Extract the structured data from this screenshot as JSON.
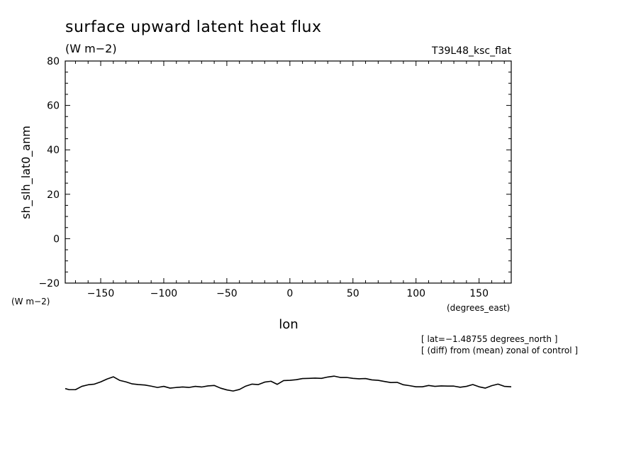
{
  "chart_data": {
    "type": "line",
    "title": "surface upward latent heat flux",
    "units": "(W m−2)",
    "run_label": "T39L48_ksc_flat",
    "ylabel": "sh_slh_lat0_anm",
    "y_unit_label": "(W m−2)",
    "xlabel": "lon",
    "x_unit_label": "(degrees_east)",
    "xlim": [
      -178.125,
      175.5
    ],
    "ylim": [
      -20,
      80
    ],
    "x_ticks": [
      -150,
      -100,
      -50,
      0,
      50,
      100,
      150
    ],
    "x_tick_labels": [
      "−150",
      "−100",
      "−50",
      "0",
      "50",
      "100",
      "150"
    ],
    "y_ticks": [
      -20,
      0,
      20,
      40,
      60,
      80
    ],
    "y_tick_labels": [
      "−20",
      "0",
      "20",
      "40",
      "60",
      "80"
    ],
    "grid": false,
    "notes": [
      "[ lat=−1.48755 degrees_north ]",
      "[ (diff) from (mean) zonal of control ]"
    ],
    "series": [
      {
        "x": [
          -178.125,
          -175,
          -170,
          -165,
          -160,
          -155,
          -150,
          -145,
          -140,
          -135,
          -130,
          -125,
          -120,
          -115,
          -110,
          -105,
          -100,
          -95,
          -90,
          -85,
          -80,
          -75,
          -70,
          -65,
          -60,
          -55,
          -50,
          -45,
          -40,
          -35,
          -30,
          -25,
          -20,
          -15,
          -10,
          -5,
          0,
          5,
          10,
          15,
          20,
          25,
          30,
          35,
          40,
          45,
          50,
          55,
          60,
          65,
          70,
          75,
          80,
          85,
          90,
          95,
          100,
          105,
          110,
          115,
          120,
          125,
          130,
          135,
          140,
          145,
          150,
          155,
          160,
          165,
          170,
          175.5
        ],
        "y": [
          -67.5,
          -68.0,
          -68.0,
          -66.5,
          -65.8,
          -65.5,
          -64.5,
          -63.2,
          -62.2,
          -63.8,
          -64.5,
          -65.4,
          -65.7,
          -65.9,
          -66.4,
          -67.0,
          -66.5,
          -67.3,
          -67.0,
          -66.8,
          -67.0,
          -66.5,
          -66.8,
          -66.3,
          -66.1,
          -67.3,
          -68.1,
          -68.6,
          -67.9,
          -66.4,
          -65.5,
          -65.7,
          -64.6,
          -64.2,
          -65.6,
          -63.9,
          -63.8,
          -63.5,
          -63.0,
          -62.9,
          -62.8,
          -62.9,
          -62.3,
          -61.9,
          -62.5,
          -62.5,
          -62.9,
          -63.1,
          -63.0,
          -63.6,
          -63.8,
          -64.3,
          -64.8,
          -64.7,
          -65.8,
          -66.2,
          -66.7,
          -66.7,
          -66.1,
          -66.5,
          -66.3,
          -66.4,
          -66.4,
          -66.9,
          -66.5,
          -65.7,
          -66.7,
          -67.3,
          -66.2,
          -65.5,
          -66.5,
          -66.7
        ]
      }
    ]
  }
}
